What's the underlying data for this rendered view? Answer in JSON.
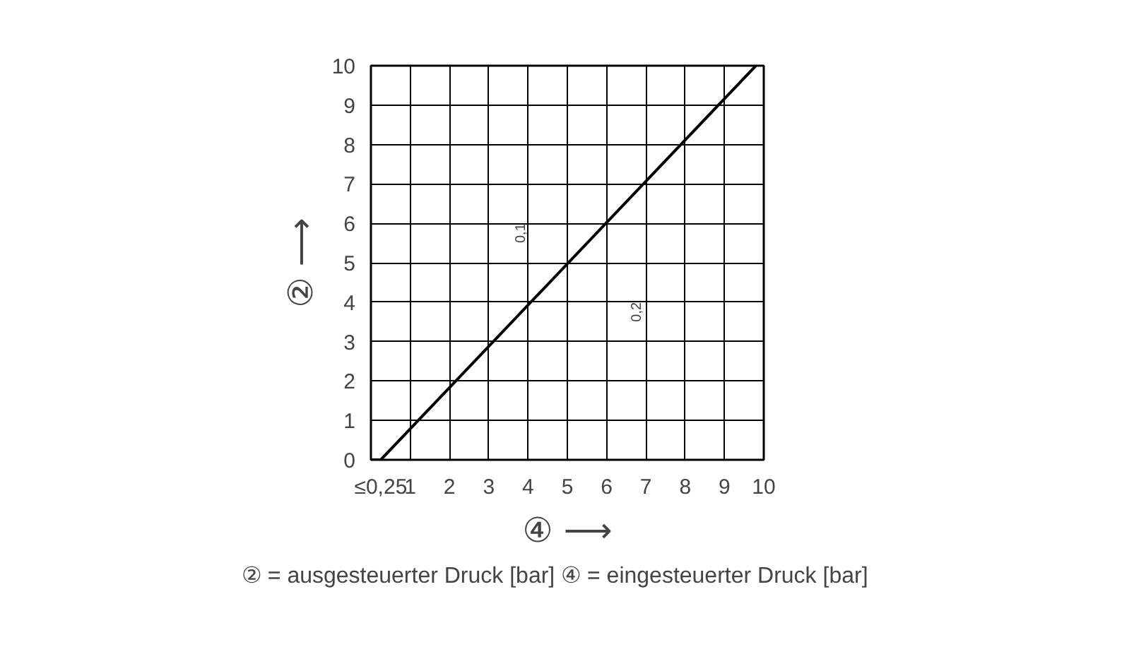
{
  "chart_data": {
    "type": "line",
    "xlabel": "④ ⟶",
    "ylabel": "② ⟶",
    "x": [
      0,
      0.25,
      9.8
    ],
    "series": [
      {
        "color": "#000000",
        "values": [
          0,
          0,
          10
        ]
      }
    ],
    "xlim": [
      0,
      10
    ],
    "ylim": [
      0,
      10
    ],
    "xticks": [
      {
        "value": 0.25,
        "label": "≤0,25"
      },
      1,
      2,
      3,
      4,
      5,
      6,
      7,
      8,
      9,
      10
    ],
    "yticks": [
      0,
      1,
      2,
      3,
      4,
      5,
      6,
      7,
      8,
      9,
      10
    ],
    "grid": true,
    "annotations": [
      "0,1",
      "0,2",
      "② = ausgesteuerter Druck [bar]     ④ = eingesteuerter Druck [bar]"
    ]
  }
}
